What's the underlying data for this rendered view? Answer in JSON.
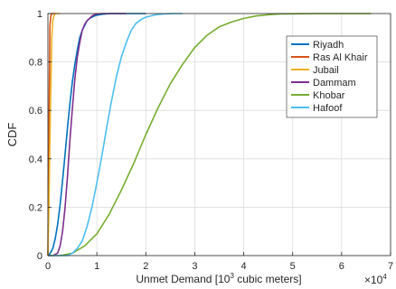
{
  "chart_data": {
    "type": "line",
    "title": "",
    "xlabel_prefix": "Unmet Demand [10",
    "xlabel_sup": "3",
    "xlabel_suffix": " cubic meters]",
    "ylabel": "CDF",
    "x_exponent_base": "×10",
    "x_exponent_power": "4",
    "xlim": [
      0,
      7
    ],
    "ylim": [
      0,
      1
    ],
    "xticks": [
      "0",
      "1",
      "2",
      "3",
      "4",
      "5",
      "6",
      "7"
    ],
    "yticks": [
      "0",
      "0.2",
      "0.4",
      "0.6",
      "0.8",
      "1"
    ],
    "grid": true,
    "legend_position": "top-right",
    "series": [
      {
        "name": "Riyadh",
        "color": "#0072BD",
        "x": [
          0.0,
          0.05,
          0.1,
          0.15,
          0.2,
          0.25,
          0.3,
          0.35,
          0.4,
          0.45,
          0.5,
          0.55,
          0.6,
          0.65,
          0.7,
          0.75,
          0.8,
          0.85,
          0.9,
          0.95,
          1.0,
          1.1,
          1.2,
          1.3,
          1.5,
          1.75,
          2.0
        ],
        "y": [
          0.0,
          0.01,
          0.03,
          0.07,
          0.13,
          0.21,
          0.31,
          0.42,
          0.53,
          0.63,
          0.72,
          0.79,
          0.85,
          0.9,
          0.93,
          0.95,
          0.97,
          0.98,
          0.985,
          0.99,
          0.993,
          0.997,
          0.999,
          1.0,
          1.0,
          1.0,
          1.0
        ]
      },
      {
        "name": "Ras Al Khair",
        "color": "#D95319",
        "x": [
          0.0,
          0.02,
          0.04,
          0.06,
          0.08,
          0.1,
          0.15
        ],
        "y": [
          0.0,
          0.5,
          0.95,
          0.99,
          1.0,
          1.0,
          1.0
        ]
      },
      {
        "name": "Jubail",
        "color": "#EDB120",
        "x": [
          0.0,
          0.02,
          0.05,
          0.08,
          0.1,
          0.12,
          0.15,
          0.2,
          0.25
        ],
        "y": [
          0.0,
          0.2,
          0.6,
          0.9,
          0.97,
          0.99,
          1.0,
          1.0,
          1.0
        ]
      },
      {
        "name": "Dammam",
        "color": "#7E2F8E",
        "x": [
          0.0,
          0.1,
          0.2,
          0.25,
          0.3,
          0.35,
          0.4,
          0.45,
          0.5,
          0.55,
          0.6,
          0.65,
          0.7,
          0.75,
          0.8,
          0.85,
          0.9,
          0.95,
          1.0,
          1.1,
          1.2,
          1.4,
          1.6
        ],
        "y": [
          0.0,
          0.0,
          0.01,
          0.04,
          0.1,
          0.2,
          0.33,
          0.48,
          0.61,
          0.73,
          0.82,
          0.88,
          0.93,
          0.955,
          0.97,
          0.98,
          0.99,
          0.995,
          0.998,
          1.0,
          1.0,
          1.0,
          1.0
        ]
      },
      {
        "name": "Khobar",
        "color": "#77AC30",
        "x": [
          0.0,
          0.25,
          0.5,
          0.75,
          1.0,
          1.25,
          1.5,
          1.75,
          2.0,
          2.25,
          2.5,
          2.75,
          3.0,
          3.25,
          3.5,
          3.75,
          4.0,
          4.25,
          4.5,
          4.75,
          5.0,
          5.5,
          6.0,
          6.6
        ],
        "y": [
          0.0,
          0.0,
          0.01,
          0.04,
          0.09,
          0.17,
          0.27,
          0.38,
          0.5,
          0.61,
          0.71,
          0.79,
          0.86,
          0.91,
          0.945,
          0.965,
          0.98,
          0.99,
          0.995,
          0.998,
          0.999,
          1.0,
          1.0,
          1.0
        ]
      },
      {
        "name": "Hafoof",
        "color": "#4DBEEE",
        "x": [
          0.0,
          0.2,
          0.4,
          0.5,
          0.6,
          0.7,
          0.8,
          0.9,
          1.0,
          1.1,
          1.2,
          1.3,
          1.4,
          1.5,
          1.6,
          1.7,
          1.8,
          1.9,
          2.0,
          2.2,
          2.4,
          2.6,
          2.75
        ],
        "y": [
          0.0,
          0.0,
          0.0,
          0.01,
          0.03,
          0.06,
          0.12,
          0.2,
          0.3,
          0.41,
          0.53,
          0.64,
          0.74,
          0.82,
          0.88,
          0.93,
          0.96,
          0.975,
          0.985,
          0.995,
          0.999,
          1.0,
          1.0
        ]
      }
    ]
  }
}
